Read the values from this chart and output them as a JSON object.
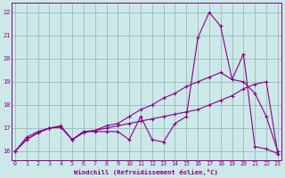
{
  "xlabel": "Windchill (Refroidissement éolien,°C)",
  "background_color": "#cce8e8",
  "line_color": "#880088",
  "grid_color": "#99bbbb",
  "x_ticks": [
    0,
    1,
    2,
    3,
    4,
    5,
    6,
    7,
    8,
    9,
    10,
    11,
    12,
    13,
    14,
    15,
    16,
    17,
    18,
    19,
    20,
    21,
    22,
    23
  ],
  "y_ticks": [
    16,
    17,
    18,
    19,
    20,
    21,
    22
  ],
  "ylim": [
    15.6,
    22.4
  ],
  "xlim": [
    -0.3,
    23.3
  ],
  "series1": [
    16.0,
    16.6,
    16.85,
    17.0,
    17.1,
    16.5,
    16.85,
    16.85,
    16.85,
    16.85,
    16.5,
    17.5,
    16.5,
    16.4,
    17.2,
    17.5,
    20.9,
    22.0,
    21.4,
    19.1,
    20.2,
    16.2,
    16.1,
    15.9
  ],
  "series2": [
    16.0,
    16.5,
    16.8,
    17.0,
    17.05,
    16.5,
    16.85,
    16.9,
    17.1,
    17.2,
    17.5,
    17.8,
    18.0,
    18.3,
    18.5,
    18.8,
    19.0,
    19.2,
    19.4,
    19.1,
    19.0,
    18.5,
    17.5,
    16.0
  ],
  "series3": [
    16.0,
    16.5,
    16.8,
    17.0,
    17.05,
    16.5,
    16.8,
    16.9,
    17.0,
    17.1,
    17.2,
    17.3,
    17.4,
    17.5,
    17.6,
    17.7,
    17.8,
    18.0,
    18.2,
    18.4,
    18.7,
    18.9,
    19.0,
    15.9
  ]
}
